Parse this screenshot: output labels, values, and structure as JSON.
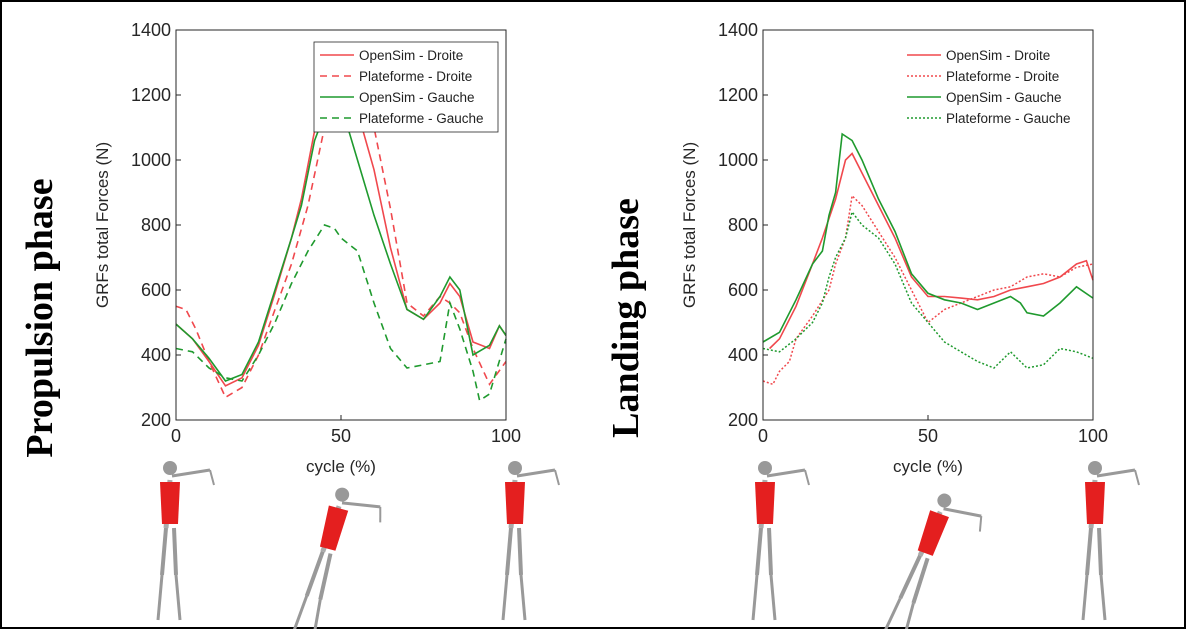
{
  "chart_data": [
    {
      "type": "line",
      "annotation": "Propulsion phase",
      "x_label": "cycle (%)",
      "y_label": "GRFs total Forces (N)",
      "xlim": [
        0,
        100
      ],
      "xticks": [
        0,
        50,
        100
      ],
      "ylim": [
        200,
        1400
      ],
      "yticks": [
        200,
        400,
        600,
        800,
        1000,
        1200,
        1400
      ],
      "legend": "upper right",
      "legend_box": true,
      "series": [
        {
          "name": "OpenSim - Droite",
          "color": "#f0484d",
          "style": "solid",
          "x": [
            0,
            5,
            10,
            15,
            20,
            25,
            30,
            35,
            38,
            42,
            45,
            48,
            50,
            55,
            60,
            65,
            70,
            75,
            80,
            83,
            86,
            90,
            95,
            98,
            100
          ],
          "values": [
            495,
            450,
            380,
            305,
            330,
            430,
            590,
            760,
            880,
            1090,
            1160,
            1240,
            1250,
            1150,
            970,
            730,
            540,
            510,
            560,
            620,
            580,
            440,
            420,
            490,
            460
          ]
        },
        {
          "name": "Plateforme - Droite",
          "color": "#f0484d",
          "style": "dashed",
          "x": [
            0,
            3,
            6,
            10,
            15,
            20,
            25,
            30,
            35,
            40,
            45,
            48,
            50,
            53,
            56,
            60,
            65,
            70,
            75,
            80,
            83,
            86,
            90,
            95,
            100
          ],
          "values": [
            550,
            540,
            480,
            380,
            270,
            300,
            400,
            540,
            680,
            860,
            1100,
            1270,
            1310,
            1200,
            1130,
            1100,
            850,
            560,
            520,
            580,
            560,
            530,
            420,
            310,
            380
          ]
        },
        {
          "name": "OpenSim - Gauche",
          "color": "#1f9a2e",
          "style": "solid",
          "x": [
            0,
            5,
            10,
            15,
            20,
            25,
            30,
            35,
            38,
            42,
            45,
            48,
            50,
            55,
            60,
            65,
            70,
            75,
            80,
            83,
            86,
            90,
            95,
            98,
            100
          ],
          "values": [
            495,
            450,
            390,
            320,
            340,
            440,
            600,
            760,
            860,
            1060,
            1140,
            1180,
            1170,
            1000,
            830,
            680,
            540,
            510,
            580,
            640,
            600,
            400,
            430,
            490,
            460
          ]
        },
        {
          "name": "Plateforme - Gauche",
          "color": "#1f9a2e",
          "style": "dashed",
          "x": [
            0,
            5,
            10,
            15,
            20,
            25,
            30,
            35,
            40,
            45,
            48,
            50,
            55,
            60,
            65,
            70,
            75,
            80,
            83,
            86,
            90,
            92,
            95,
            100
          ],
          "values": [
            420,
            410,
            360,
            330,
            320,
            400,
            500,
            620,
            720,
            800,
            790,
            760,
            720,
            560,
            420,
            360,
            370,
            380,
            560,
            480,
            350,
            260,
            280,
            450
          ]
        }
      ]
    },
    {
      "type": "line",
      "annotation": "Landing phase",
      "x_label": "cycle (%)",
      "y_label": "GRFs total Forces (N)",
      "xlim": [
        0,
        100
      ],
      "xticks": [
        0,
        50,
        100
      ],
      "ylim": [
        200,
        1400
      ],
      "yticks": [
        200,
        400,
        600,
        800,
        1000,
        1200,
        1400
      ],
      "legend": "upper right",
      "legend_box": false,
      "series": [
        {
          "name": "OpenSim - Droite",
          "color": "#f0484d",
          "style": "solid",
          "x": [
            2,
            5,
            10,
            15,
            18,
            20,
            22,
            25,
            27,
            30,
            35,
            40,
            45,
            50,
            55,
            60,
            65,
            70,
            75,
            80,
            85,
            90,
            95,
            98,
            100
          ],
          "values": [
            420,
            450,
            550,
            680,
            760,
            820,
            880,
            1000,
            1020,
            960,
            860,
            760,
            640,
            580,
            580,
            575,
            570,
            580,
            600,
            610,
            620,
            640,
            680,
            690,
            630
          ]
        },
        {
          "name": "Plateforme - Droite",
          "color": "#f0484d",
          "style": "dotted",
          "x": [
            0,
            3,
            5,
            8,
            10,
            15,
            20,
            22,
            25,
            27,
            30,
            35,
            40,
            45,
            50,
            55,
            60,
            65,
            70,
            75,
            80,
            85,
            90,
            95,
            100
          ],
          "values": [
            320,
            310,
            350,
            380,
            450,
            520,
            600,
            680,
            760,
            890,
            860,
            780,
            700,
            600,
            500,
            540,
            560,
            580,
            600,
            610,
            640,
            650,
            640,
            670,
            680
          ]
        },
        {
          "name": "OpenSim - Gauche",
          "color": "#1f9a2e",
          "style": "solid",
          "x": [
            0,
            5,
            10,
            15,
            18,
            20,
            22,
            24,
            27,
            30,
            35,
            40,
            45,
            50,
            55,
            60,
            65,
            70,
            75,
            78,
            80,
            85,
            90,
            95,
            100
          ],
          "values": [
            440,
            470,
            570,
            680,
            720,
            830,
            900,
            1080,
            1060,
            1000,
            880,
            780,
            650,
            590,
            570,
            560,
            540,
            560,
            580,
            560,
            530,
            520,
            560,
            610,
            575
          ]
        },
        {
          "name": "Plateforme - Gauche",
          "color": "#1f9a2e",
          "style": "dotted",
          "x": [
            0,
            5,
            10,
            15,
            18,
            20,
            22,
            25,
            27,
            30,
            35,
            40,
            45,
            50,
            55,
            60,
            65,
            70,
            75,
            80,
            85,
            90,
            95,
            100
          ],
          "values": [
            420,
            410,
            450,
            500,
            560,
            640,
            700,
            760,
            840,
            800,
            760,
            680,
            560,
            500,
            440,
            410,
            380,
            360,
            410,
            360,
            370,
            420,
            410,
            390
          ]
        }
      ]
    }
  ]
}
